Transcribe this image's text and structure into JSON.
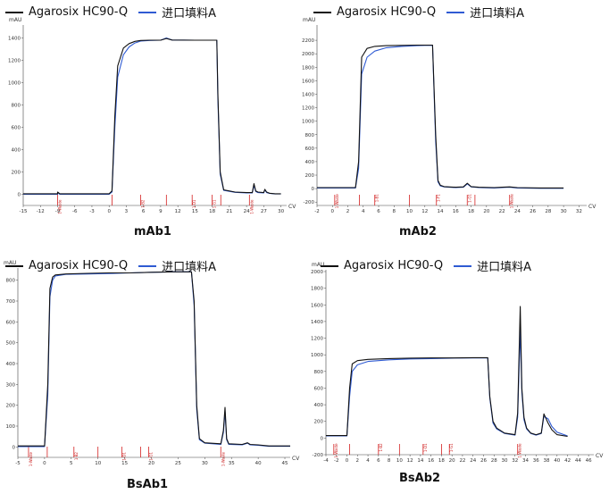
{
  "legend": [
    {
      "name": "Agarosix HC90-Q",
      "color": "#111111"
    },
    {
      "name": "进口填料A",
      "color": "#2f5bd3"
    }
  ],
  "chart_data": [
    {
      "type": "line",
      "title": "mAb1",
      "ylabel": "mAU",
      "xlabel": "CV",
      "xlim": [
        -15,
        31
      ],
      "ylim": [
        -100,
        1500
      ],
      "xticks": [
        -15,
        -12,
        -9,
        -6,
        -3,
        0,
        3,
        6,
        9,
        12,
        15,
        18,
        21,
        24,
        27,
        30
      ],
      "yticks": [
        0,
        200,
        400,
        600,
        800,
        1000,
        1200,
        1400
      ],
      "fractions": [
        {
          "x": 0.5,
          "label": ""
        },
        {
          "x": 5.5,
          "label": "1-B2"
        },
        {
          "x": 10,
          "label": ""
        },
        {
          "x": 14.5,
          "label": "1-D1"
        },
        {
          "x": 18,
          "label": "1-G1"
        },
        {
          "x": 19.5,
          "label": ""
        },
        {
          "x": 24.5,
          "label": "1-Waste"
        },
        {
          "x": -9,
          "label": "1-Waste"
        }
      ],
      "series": [
        {
          "name": "Agarosix HC90-Q",
          "x": [
            -15,
            -9,
            -9,
            -8.6,
            0,
            0.5,
            1,
            1.5,
            2.5,
            3.5,
            4.5,
            5.5,
            7,
            9,
            10,
            11,
            15,
            17,
            18.8,
            19,
            19.4,
            20,
            22,
            24,
            25,
            25.3,
            25.6,
            26,
            27,
            27.2,
            27.5,
            28,
            29,
            30
          ],
          "y": [
            5,
            5,
            20,
            5,
            5,
            30,
            700,
            1150,
            1310,
            1350,
            1370,
            1378,
            1380,
            1380,
            1395,
            1382,
            1380,
            1380,
            1380,
            900,
            200,
            40,
            20,
            15,
            15,
            95,
            30,
            20,
            15,
            45,
            20,
            10,
            5,
            5
          ]
        },
        {
          "name": "进口填料A",
          "x": [
            -15,
            -9,
            -9,
            -8.6,
            0,
            0.5,
            1,
            1.5,
            2.5,
            3.5,
            4.5,
            5.5,
            7,
            9,
            10,
            11,
            15,
            17,
            18.8,
            19,
            19.4,
            20,
            22,
            24,
            25,
            25.3,
            25.6,
            26,
            27,
            27.2,
            27.5,
            28,
            29,
            30
          ],
          "y": [
            0,
            0,
            15,
            0,
            0,
            20,
            600,
            1050,
            1250,
            1320,
            1355,
            1372,
            1378,
            1380,
            1400,
            1382,
            1380,
            1380,
            1380,
            850,
            180,
            35,
            18,
            12,
            12,
            80,
            25,
            15,
            12,
            40,
            15,
            8,
            3,
            3
          ]
        }
      ]
    },
    {
      "type": "line",
      "title": "mAb2",
      "ylabel": "mAU",
      "xlabel": "CV",
      "xlim": [
        -2,
        33
      ],
      "ylim": [
        -250,
        2400
      ],
      "xticks": [
        -2,
        0,
        2,
        4,
        6,
        8,
        10,
        12,
        14,
        16,
        18,
        20,
        22,
        24,
        26,
        28,
        30,
        32
      ],
      "yticks": [
        -200,
        0,
        200,
        400,
        600,
        800,
        1000,
        1200,
        1400,
        1600,
        1800,
        2000,
        2200
      ],
      "fractions": [
        {
          "x": 0.3,
          "label": "1-Waste"
        },
        {
          "x": 3.5,
          "label": ""
        },
        {
          "x": 5.5,
          "label": "1-B1"
        },
        {
          "x": 10,
          "label": ""
        },
        {
          "x": 13.5,
          "label": "1-F1"
        },
        {
          "x": 17.5,
          "label": "1-G1"
        },
        {
          "x": 18.5,
          "label": ""
        },
        {
          "x": 23,
          "label": "1-Waste"
        }
      ],
      "series": [
        {
          "name": "Agarosix HC90-Q",
          "x": [
            -2,
            0,
            2,
            3,
            3.4,
            3.8,
            4.5,
            5.5,
            7,
            9,
            11,
            12,
            13,
            13.4,
            13.7,
            14,
            14.5,
            16,
            17,
            17.5,
            18,
            19,
            21,
            22,
            23,
            24,
            27,
            30
          ],
          "y": [
            15,
            15,
            15,
            15,
            400,
            1950,
            2080,
            2110,
            2120,
            2125,
            2128,
            2128,
            2128,
            800,
            120,
            50,
            30,
            20,
            25,
            80,
            30,
            20,
            15,
            20,
            25,
            15,
            10,
            10
          ]
        },
        {
          "name": "进口填料A",
          "x": [
            -2,
            0,
            2,
            3,
            3.4,
            3.8,
            4.5,
            5.5,
            7,
            9,
            11,
            12,
            13,
            13.4,
            13.7,
            14,
            14.5,
            16,
            17,
            17.5,
            18,
            19,
            21,
            22,
            23,
            24,
            27,
            30
          ],
          "y": [
            10,
            10,
            10,
            10,
            300,
            1700,
            1950,
            2040,
            2090,
            2110,
            2120,
            2125,
            2125,
            700,
            100,
            40,
            25,
            15,
            20,
            70,
            25,
            15,
            10,
            15,
            20,
            10,
            5,
            5
          ]
        }
      ]
    },
    {
      "type": "line",
      "title": "BsAb1",
      "ylabel": "mAU",
      "xlabel": "CV",
      "xlim": [
        -5,
        46
      ],
      "ylim": [
        -50,
        850
      ],
      "xticks": [
        -5,
        0,
        5,
        10,
        15,
        20,
        25,
        30,
        35,
        40,
        45
      ],
      "yticks": [
        0,
        100,
        200,
        300,
        400,
        500,
        600,
        700,
        800
      ],
      "fractions": [
        {
          "x": -3,
          "label": "1-Waste"
        },
        {
          "x": 0.5,
          "label": ""
        },
        {
          "x": 5.5,
          "label": "1-B2"
        },
        {
          "x": 10,
          "label": ""
        },
        {
          "x": 14.5,
          "label": "1-D1"
        },
        {
          "x": 18,
          "label": ""
        },
        {
          "x": 19.5,
          "label": "1-G1"
        },
        {
          "x": 33,
          "label": "1-Waste"
        }
      ],
      "series": [
        {
          "name": "Agarosix HC90-Q",
          "x": [
            -5,
            0,
            0.6,
            1,
            1.5,
            2,
            4,
            8,
            12,
            16,
            20,
            24,
            27.5,
            28,
            28.5,
            29,
            30,
            33,
            33.5,
            33.8,
            34.1,
            34.5,
            37,
            38,
            38.5,
            40,
            42,
            46
          ],
          "y": [
            5,
            5,
            300,
            760,
            815,
            825,
            830,
            833,
            835,
            835,
            838,
            840,
            840,
            700,
            200,
            40,
            20,
            15,
            80,
            190,
            40,
            15,
            12,
            20,
            12,
            10,
            5,
            5
          ]
        },
        {
          "name": "进口填料A",
          "x": [
            -5,
            0,
            0.6,
            1,
            1.5,
            2,
            4,
            8,
            12,
            16,
            20,
            24,
            27.5,
            28,
            28.5,
            29,
            30,
            33,
            33.5,
            33.8,
            34.1,
            34.5,
            37,
            38,
            38.5,
            40,
            42,
            46
          ],
          "y": [
            2,
            2,
            250,
            720,
            800,
            820,
            828,
            830,
            832,
            835,
            838,
            840,
            840,
            680,
            180,
            35,
            18,
            12,
            70,
            170,
            35,
            12,
            10,
            18,
            10,
            8,
            3,
            3
          ]
        }
      ]
    },
    {
      "type": "line",
      "title": "BsAb2",
      "ylabel": "mAU",
      "xlabel": "CV",
      "xlim": [
        -4,
        47
      ],
      "ylim": [
        -200,
        2000
      ],
      "xticks": [
        -4,
        -2,
        0,
        2,
        4,
        6,
        8,
        10,
        12,
        14,
        16,
        18,
        20,
        22,
        24,
        26,
        28,
        30,
        32,
        34,
        36,
        38,
        40,
        42,
        44,
        46
      ],
      "yticks": [
        -200,
        0,
        200,
        400,
        600,
        800,
        1000,
        1200,
        1400,
        1600,
        1800,
        2000
      ],
      "fractions": [
        {
          "x": -2.5,
          "label": "1-Waste"
        },
        {
          "x": 0.5,
          "label": ""
        },
        {
          "x": 6,
          "label": "1-B2"
        },
        {
          "x": 10,
          "label": ""
        },
        {
          "x": 14.5,
          "label": "1-D1"
        },
        {
          "x": 18,
          "label": ""
        },
        {
          "x": 19.5,
          "label": "1-G1"
        },
        {
          "x": 32.5,
          "label": "1-Waste"
        }
      ],
      "series": [
        {
          "name": "Agarosix HC90-Q",
          "x": [
            -4,
            0,
            0.5,
            1,
            2,
            4,
            8,
            12,
            16,
            20,
            24,
            26,
            26.8,
            27.2,
            27.8,
            28.5,
            30,
            32,
            32.5,
            33,
            33.3,
            33.7,
            34.2,
            35,
            36,
            37,
            37.5,
            38.3,
            39,
            40,
            42
          ],
          "y": [
            30,
            30,
            600,
            890,
            930,
            945,
            955,
            960,
            962,
            962,
            965,
            965,
            965,
            500,
            200,
            120,
            60,
            40,
            300,
            1580,
            600,
            250,
            120,
            60,
            40,
            60,
            290,
            180,
            100,
            40,
            20
          ]
        },
        {
          "name": "进口填料A",
          "x": [
            -4,
            0,
            0.5,
            1,
            2,
            4,
            8,
            12,
            16,
            20,
            24,
            26,
            26.8,
            27.2,
            27.8,
            28.5,
            30,
            32,
            32.5,
            33,
            33.3,
            33.7,
            34.2,
            35,
            36,
            37,
            37.5,
            38.3,
            39,
            40,
            42
          ],
          "y": [
            25,
            25,
            500,
            800,
            880,
            920,
            940,
            950,
            955,
            960,
            962,
            962,
            962,
            480,
            180,
            110,
            55,
            35,
            250,
            1300,
            550,
            220,
            110,
            55,
            35,
            55,
            260,
            230,
            140,
            70,
            25
          ]
        }
      ]
    }
  ]
}
